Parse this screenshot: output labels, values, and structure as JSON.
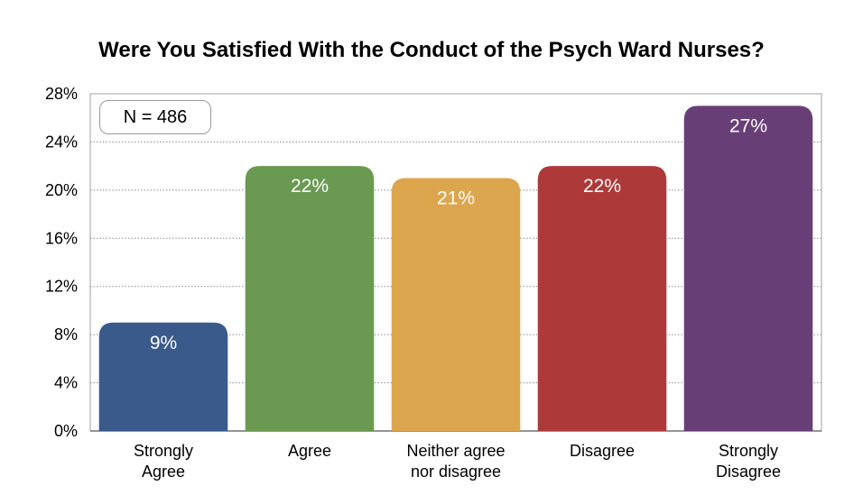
{
  "chart_data": {
    "type": "bar",
    "title": "Were You Satisfied With the Conduct of the Psych Ward Nurses?",
    "annotation": "N = 486",
    "categories": [
      "Strongly\nAgree",
      "Agree",
      "Neither agree\nnor disagree",
      "Disagree",
      "Strongly\nDisagree"
    ],
    "values": [
      9,
      22,
      21,
      22,
      27
    ],
    "data_labels": [
      "9%",
      "22%",
      "21%",
      "22%",
      "27%"
    ],
    "colors": [
      "#3a5a8c",
      "#6a9a52",
      "#dca64e",
      "#ad3a39",
      "#683e77"
    ],
    "ylim": [
      0,
      28
    ],
    "yticks": [
      0,
      4,
      8,
      12,
      16,
      20,
      24,
      28
    ],
    "ytick_labels": [
      "0%",
      "4%",
      "8%",
      "12%",
      "16%",
      "20%",
      "24%",
      "28%"
    ],
    "xlabel": "",
    "ylabel": "",
    "grid": true
  }
}
